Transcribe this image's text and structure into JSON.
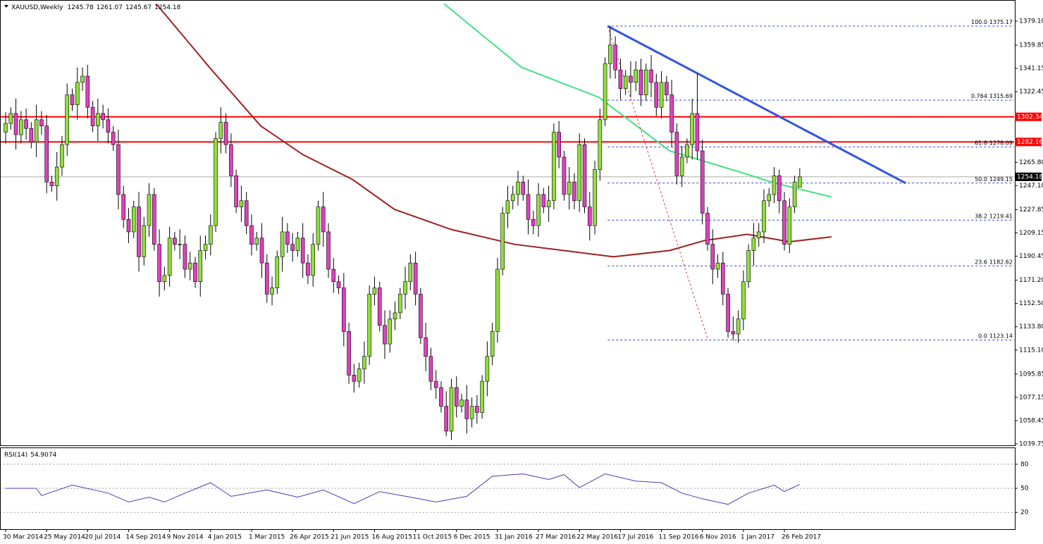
{
  "chart_data": {
    "type": "candlestick",
    "symbol": "XAUUSD,Weekly",
    "categories": [
      "30 Mar 2014",
      null,
      null,
      null,
      null,
      null,
      null,
      null,
      "25 May 2014",
      null,
      null,
      null,
      null,
      null,
      null,
      null,
      "20 Jul 2014",
      null,
      null,
      null,
      null,
      null,
      null,
      null,
      "14 Sep 2014",
      null,
      null,
      null,
      null,
      null,
      null,
      null,
      "9 Nov 2014",
      null,
      null,
      null,
      null,
      null,
      null,
      null,
      "4 Jan 2015",
      null,
      null,
      null,
      null,
      null,
      null,
      null,
      "1 Mar 2015",
      null,
      null,
      null,
      null,
      null,
      null,
      null,
      "26 Apr 2015",
      null,
      null,
      null,
      null,
      null,
      null,
      null,
      "21 Jun 2015",
      null,
      null,
      null,
      null,
      null,
      null,
      null,
      "16 Aug 2015",
      null,
      null,
      null,
      null,
      null,
      null,
      null,
      "11 Oct 2015",
      null,
      null,
      null,
      null,
      null,
      null,
      null,
      "6 Dec 2015",
      null,
      null,
      null,
      null,
      null,
      null,
      null,
      "31 Jan 2016",
      null,
      null,
      null,
      null,
      null,
      null,
      null,
      "27 Mar 2016",
      null,
      null,
      null,
      null,
      null,
      null,
      null,
      "22 May 2016",
      null,
      null,
      null,
      null,
      null,
      null,
      null,
      "17 Jul 2016",
      null,
      null,
      null,
      null,
      null,
      null,
      null,
      "11 Sep 2016",
      null,
      null,
      null,
      null,
      null,
      null,
      null,
      "6 Nov 2016",
      null,
      null,
      null,
      null,
      null,
      null,
      null,
      "1 Jan 2017",
      null,
      null,
      null,
      null,
      null,
      null,
      null,
      "26 Feb 2017",
      null,
      null,
      null
    ],
    "open": [
      1290,
      1297,
      1305,
      1288,
      1300,
      1293,
      1282,
      1300,
      1295,
      1250,
      1247,
      1262,
      1280,
      1320,
      1312,
      1330,
      1335,
      1310,
      1295,
      1305,
      1300,
      1290,
      1280,
      1240,
      1220,
      1210,
      1230,
      1190,
      1215,
      1240,
      1200,
      1170,
      1175,
      1205,
      1200,
      1200,
      1180,
      1185,
      1170,
      1195,
      1200,
      1215,
      1285,
      1298,
      1280,
      1255,
      1230,
      1235,
      1215,
      1200,
      1205,
      1185,
      1160,
      1165,
      1190,
      1210,
      1200,
      1195,
      1205,
      1185,
      1175,
      1200,
      1230,
      1210,
      1180,
      1170,
      1165,
      1130,
      1095,
      1090,
      1100,
      1110,
      1160,
      1165,
      1135,
      1120,
      1140,
      1145,
      1160,
      1170,
      1185,
      1160,
      1125,
      1110,
      1090,
      1085,
      1070,
      1050,
      1085,
      1070,
      1075,
      1060,
      1070,
      1065,
      1090,
      1110,
      1130,
      1180,
      1225,
      1235,
      1240,
      1250,
      1240,
      1220,
      1215,
      1240,
      1230,
      1235,
      1290,
      1270,
      1240,
      1250,
      1235,
      1280,
      1230,
      1215,
      1260,
      1300,
      1345,
      1360,
      1340,
      1325,
      1335,
      1330,
      1340,
      1320,
      1340,
      1330,
      1310,
      1330,
      1320,
      1290,
      1255,
      1270,
      1280,
      1305,
      1275,
      1225,
      1200,
      1180,
      1185,
      1160,
      1130,
      1128,
      1140,
      1170,
      1195,
      1205,
      1210,
      1235,
      1240,
      1255,
      1235,
      1200,
      1230,
      1245.78
    ],
    "high": [
      1306,
      1310,
      1317,
      1307,
      1309,
      1298,
      1312,
      1307,
      1304,
      1255,
      1274,
      1287,
      1329,
      1325,
      1342,
      1342,
      1344,
      1315,
      1317,
      1312,
      1309,
      1295,
      1292,
      1247,
      1229,
      1235,
      1242,
      1222,
      1249,
      1245,
      1212,
      1182,
      1214,
      1210,
      1212,
      1207,
      1194,
      1190,
      1207,
      1207,
      1224,
      1290,
      1310,
      1305,
      1289,
      1260,
      1247,
      1242,
      1224,
      1210,
      1217,
      1192,
      1174,
      1195,
      1222,
      1217,
      1209,
      1210,
      1217,
      1192,
      1209,
      1235,
      1242,
      1217,
      1189,
      1175,
      1177,
      1137,
      1104,
      1105,
      1122,
      1167,
      1174,
      1170,
      1147,
      1147,
      1154,
      1165,
      1182,
      1192,
      1194,
      1165,
      1137,
      1117,
      1099,
      1090,
      1082,
      1092,
      1094,
      1080,
      1087,
      1077,
      1079,
      1095,
      1122,
      1137,
      1189,
      1230,
      1247,
      1247,
      1259,
      1255,
      1252,
      1227,
      1249,
      1245,
      1247,
      1297,
      1299,
      1275,
      1262,
      1257,
      1289,
      1285,
      1242,
      1267,
      1309,
      1350,
      1375,
      1367,
      1349,
      1340,
      1347,
      1347,
      1349,
      1345,
      1352,
      1337,
      1339,
      1335,
      1332,
      1297,
      1279,
      1285,
      1317,
      1337,
      1284,
      1230,
      1212,
      1192,
      1194,
      1165,
      1142,
      1147,
      1179,
      1200,
      1217,
      1217,
      1244,
      1245,
      1262,
      1260,
      1242,
      1237,
      1255,
      1261.07
    ],
    "low": [
      1281,
      1292,
      1276,
      1281,
      1284,
      1277,
      1270,
      1288,
      1241,
      1242,
      1235,
      1255,
      1271,
      1307,
      1300,
      1323,
      1301,
      1290,
      1283,
      1293,
      1281,
      1275,
      1228,
      1213,
      1201,
      1205,
      1178,
      1183,
      1206,
      1195,
      1158,
      1163,
      1166,
      1195,
      1188,
      1173,
      1171,
      1165,
      1158,
      1188,
      1191,
      1210,
      1273,
      1273,
      1246,
      1225,
      1218,
      1208,
      1191,
      1195,
      1173,
      1153,
      1151,
      1160,
      1178,
      1193,
      1186,
      1190,
      1173,
      1168,
      1166,
      1195,
      1198,
      1173,
      1161,
      1160,
      1118,
      1088,
      1081,
      1085,
      1088,
      1103,
      1151,
      1130,
      1108,
      1113,
      1131,
      1140,
      1148,
      1163,
      1151,
      1120,
      1098,
      1083,
      1076,
      1065,
      1046,
      1043,
      1061,
      1065,
      1048,
      1053,
      1056,
      1060,
      1078,
      1103,
      1121,
      1175,
      1213,
      1228,
      1231,
      1235,
      1208,
      1208,
      1206,
      1225,
      1218,
      1228,
      1261,
      1235,
      1228,
      1228,
      1226,
      1225,
      1203,
      1208,
      1251,
      1295,
      1333,
      1333,
      1316,
      1320,
      1318,
      1323,
      1311,
      1315,
      1318,
      1303,
      1301,
      1315,
      1278,
      1248,
      1246,
      1265,
      1268,
      1268,
      1216,
      1195,
      1168,
      1173,
      1151,
      1125,
      1123,
      1121,
      1131,
      1165,
      1183,
      1198,
      1201,
      1230,
      1233,
      1225,
      1195,
      1193,
      1225,
      1245.67
    ],
    "close": [
      1297,
      1305,
      1288,
      1300,
      1293,
      1282,
      1300,
      1295,
      1250,
      1247,
      1262,
      1280,
      1320,
      1312,
      1330,
      1335,
      1310,
      1295,
      1305,
      1300,
      1290,
      1280,
      1240,
      1220,
      1210,
      1230,
      1190,
      1215,
      1240,
      1200,
      1170,
      1175,
      1205,
      1200,
      1200,
      1180,
      1185,
      1170,
      1195,
      1200,
      1215,
      1285,
      1298,
      1280,
      1255,
      1230,
      1235,
      1215,
      1200,
      1205,
      1185,
      1160,
      1165,
      1190,
      1210,
      1200,
      1195,
      1205,
      1185,
      1175,
      1200,
      1230,
      1210,
      1180,
      1170,
      1165,
      1130,
      1095,
      1090,
      1100,
      1110,
      1160,
      1165,
      1135,
      1120,
      1140,
      1145,
      1160,
      1170,
      1185,
      1160,
      1125,
      1110,
      1090,
      1085,
      1070,
      1050,
      1085,
      1070,
      1075,
      1060,
      1070,
      1065,
      1090,
      1110,
      1130,
      1180,
      1225,
      1235,
      1240,
      1250,
      1240,
      1220,
      1215,
      1240,
      1230,
      1235,
      1290,
      1270,
      1240,
      1250,
      1235,
      1280,
      1230,
      1215,
      1260,
      1300,
      1345,
      1360,
      1340,
      1325,
      1335,
      1330,
      1340,
      1320,
      1340,
      1330,
      1310,
      1330,
      1320,
      1290,
      1255,
      1270,
      1280,
      1305,
      1275,
      1225,
      1200,
      1180,
      1185,
      1160,
      1130,
      1128,
      1140,
      1170,
      1195,
      1205,
      1210,
      1235,
      1240,
      1255,
      1235,
      1200,
      1230,
      1250,
      1254.18
    ],
    "up_color": "#8fe03a",
    "down_color": "#e040c0",
    "ylim": [
      1038.6,
      1396.1
    ],
    "yticks": [
      {
        "value": 1379.1,
        "label": "1379.10"
      },
      1359.85,
      1341.15,
      1322.45,
      {
        "value": 1265.8,
        "label": "1265.80"
      },
      {
        "value": 1247.1,
        "label": "1247.10"
      },
      1227.85,
      1209.15,
      1190.45,
      {
        "value": 1171.2,
        "label": "1171.20"
      },
      {
        "value": 1152.5,
        "label": "1152.50"
      },
      {
        "value": 1133.8,
        "label": "1133.80"
      },
      {
        "value": 1115.1,
        "label": "1115.10"
      },
      1095.85,
      1077.15,
      1058.45,
      1039.75
    ],
    "hlines": [
      {
        "value": 1302.34,
        "color": "#ff0000"
      },
      {
        "value": 1282.16,
        "color": "#ff0000"
      }
    ],
    "moving_averages": [
      {
        "color": "#40e080",
        "x": [
          85.6,
          100.7,
          115.8,
          129.6,
          143.3,
          150.2,
          161.2
        ],
        "values": [
          1393,
          1342,
          1318,
          1275,
          1258,
          1249,
          1238
        ]
      },
      {
        "color": "#a02020",
        "x": [
          29.4,
          40.2,
          49.8,
          58.0,
          67.7,
          75.9,
          86.9,
          99.3,
          108.9,
          118.6,
          129.6,
          136.4,
          144.7,
          153.0,
          161.2
        ],
        "values": [
          1393,
          1340,
          1295,
          1272,
          1252,
          1228,
          1212,
          1200,
          1195,
          1190,
          1195,
          1203,
          1208,
          1202,
          1206
        ]
      }
    ],
    "trendline": {
      "color": "#3355dd",
      "x": [
        117.5,
        175.7
      ],
      "values": [
        1375.17,
        1249
      ]
    },
    "fib_diagonal": {
      "color": "#e04040",
      "x": [
        117.5,
        137.1
      ],
      "values": [
        1375.17,
        1123.14
      ]
    },
    "fib_x": [
      117.5,
      197
    ],
    "fib_levels": [
      {
        "level": "100.0",
        "value": 1375.17
      },
      {
        "level": "0.764",
        "value": 1315.69
      },
      {
        "level": "61.8",
        "value": 1278.09
      },
      {
        "level": "50.0",
        "value": 1249.15
      },
      {
        "level": "38.2",
        "value": 1219.41
      },
      {
        "level": "23.6",
        "value": 1182.62
      },
      {
        "level": "0.0",
        "value": 1123.14
      }
    ],
    "rsi": {
      "label": "RSI(14)",
      "color": "#5533bb",
      "ylim": [
        0,
        100
      ],
      "yticks": [
        80,
        50,
        20
      ],
      "x": [
        0,
        6,
        7,
        13,
        20,
        24,
        28,
        31,
        35,
        40,
        44,
        51,
        57,
        62,
        68,
        73,
        79,
        84,
        90,
        95,
        101,
        106,
        109,
        112,
        117,
        123,
        128,
        132,
        136,
        141,
        145,
        150,
        152,
        155
      ],
      "values": [
        50,
        50,
        41,
        54,
        44,
        33,
        39,
        33,
        44,
        57,
        40,
        48,
        39,
        48,
        31,
        46,
        39,
        33,
        40,
        65,
        68,
        61,
        67,
        51,
        68,
        59,
        57,
        44,
        37,
        30,
        44,
        54,
        46,
        54.9074
      ]
    }
  }
}
